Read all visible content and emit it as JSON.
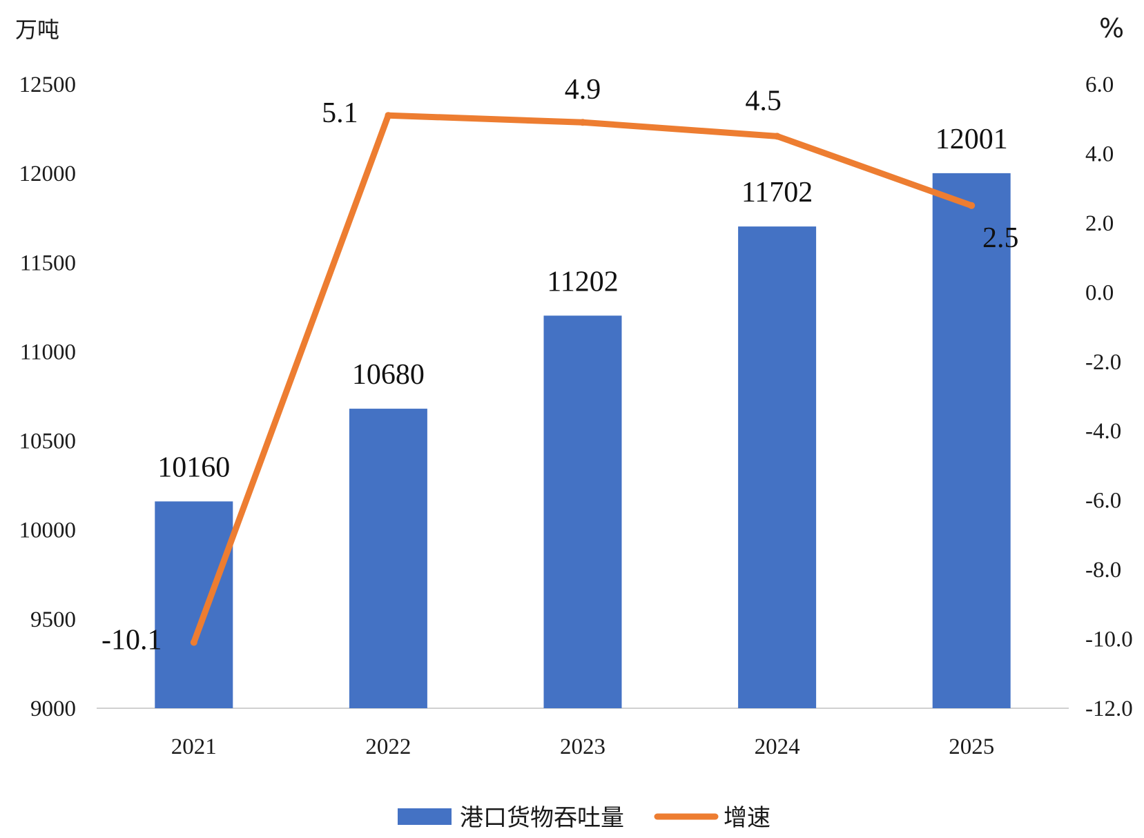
{
  "chart_data": {
    "type": "bar",
    "categories": [
      "2021",
      "2022",
      "2023",
      "2024",
      "2025"
    ],
    "series": [
      {
        "name": "港口货物吞吐量",
        "type": "bar",
        "axis": "left",
        "values": [
          10160,
          10680,
          11202,
          11702,
          12001
        ],
        "labels": [
          "10160",
          "10680",
          "11202",
          "11702",
          "12001"
        ],
        "color": "#4472C4"
      },
      {
        "name": "增速",
        "type": "line",
        "axis": "right",
        "values": [
          -10.1,
          5.1,
          4.9,
          4.5,
          2.5
        ],
        "labels": [
          "-10.1",
          "5.1",
          "4.9",
          "4.5",
          "2.5"
        ],
        "color": "#ED7D31"
      }
    ],
    "left_axis": {
      "unit": "万吨",
      "ylim": [
        9000,
        12500
      ],
      "ticks": [
        "9000",
        "9500",
        "10000",
        "10500",
        "11000",
        "11500",
        "12000",
        "12500"
      ]
    },
    "right_axis": {
      "unit": "%",
      "ylim": [
        -12.0,
        6.0
      ],
      "ticks": [
        "-12.0",
        "-10.0",
        "-8.0",
        "-6.0",
        "-4.0",
        "-2.0",
        "0.0",
        "2.0",
        "4.0",
        "6.0"
      ]
    },
    "grid": false,
    "legend": "bottom-center"
  }
}
